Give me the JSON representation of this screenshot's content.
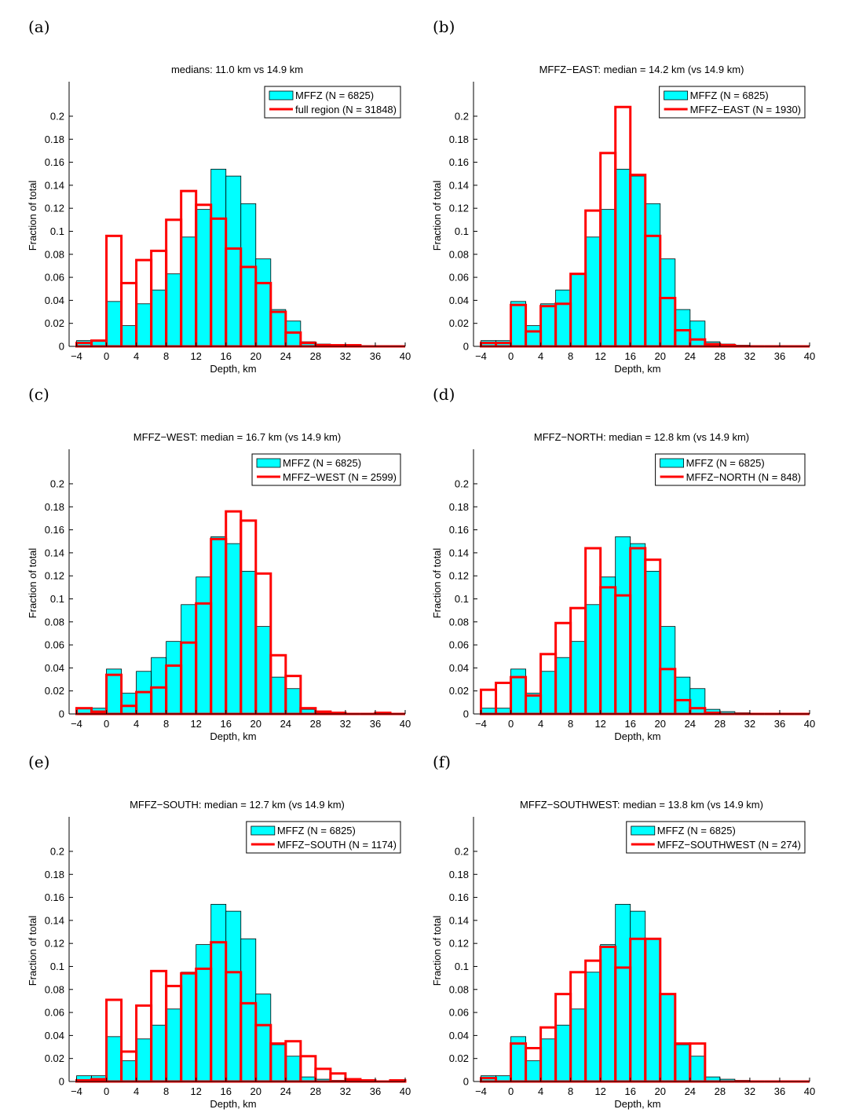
{
  "figure": {
    "colors": {
      "fill": "#00ffff",
      "fill_edge": "#000000",
      "outline": "#ff0000",
      "axis": "#000000"
    }
  },
  "chart_data": [
    {
      "type": "bar",
      "panel_label": "(a)",
      "title": "medians: 11.0 km vs 14.9 km",
      "xlabel": "Depth, km",
      "ylabel": "Fraction of total",
      "xlim": [
        -5,
        40
      ],
      "ylim": [
        0,
        0.23
      ],
      "xticks": [
        -4,
        0,
        4,
        8,
        12,
        16,
        20,
        24,
        28,
        32,
        36,
        40
      ],
      "yticks": [
        0,
        0.02,
        0.04,
        0.06,
        0.08,
        0.1,
        0.12,
        0.14,
        0.16,
        0.18,
        0.2
      ],
      "ytick_labels": [
        "0",
        "0.02",
        "0.04",
        "0.06",
        "0.08",
        "0.1",
        "0.12",
        "0.14",
        "0.16",
        "0.18",
        "0.2"
      ],
      "bin_edges": [
        -4,
        -2,
        0,
        2,
        4,
        6,
        8,
        10,
        12,
        14,
        16,
        18,
        20,
        22,
        24,
        26,
        28,
        30,
        32,
        34,
        36,
        38,
        40
      ],
      "legend_position": "top-right",
      "series": [
        {
          "name": "MFFZ (N = 6825)",
          "style": "filled",
          "values": [
            0.005,
            0.005,
            0.039,
            0.018,
            0.037,
            0.049,
            0.063,
            0.095,
            0.119,
            0.154,
            0.148,
            0.124,
            0.076,
            0.032,
            0.022,
            0.004,
            0.002,
            0.001,
            0,
            0,
            0,
            0
          ]
        },
        {
          "name": "full region (N = 31848)",
          "style": "outline",
          "values": [
            0.003,
            0.005,
            0.096,
            0.055,
            0.075,
            0.083,
            0.11,
            0.135,
            0.123,
            0.111,
            0.085,
            0.069,
            0.055,
            0.03,
            0.012,
            0.003,
            0.001,
            0.001,
            0.001,
            0.0,
            0.0,
            0.0
          ]
        }
      ]
    },
    {
      "type": "bar",
      "panel_label": "(b)",
      "title": "MFFZ−EAST: median = 14.2 km (vs 14.9 km)",
      "xlabel": "Depth, km",
      "ylabel": "Fraction of total",
      "xlim": [
        -5,
        40
      ],
      "ylim": [
        0,
        0.23
      ],
      "xticks": [
        -4,
        0,
        4,
        8,
        12,
        16,
        20,
        24,
        28,
        32,
        36,
        40
      ],
      "yticks": [
        0,
        0.02,
        0.04,
        0.06,
        0.08,
        0.1,
        0.12,
        0.14,
        0.16,
        0.18,
        0.2
      ],
      "ytick_labels": [
        "0",
        "0.02",
        "0.04",
        "0.06",
        "0.08",
        "0.1",
        "0.12",
        "0.14",
        "0.16",
        "0.18",
        "0.2"
      ],
      "bin_edges": [
        -4,
        -2,
        0,
        2,
        4,
        6,
        8,
        10,
        12,
        14,
        16,
        18,
        20,
        22,
        24,
        26,
        28,
        30,
        32,
        34,
        36,
        38,
        40
      ],
      "legend_position": "top-right",
      "series": [
        {
          "name": "MFFZ (N = 6825)",
          "style": "filled",
          "values": [
            0.005,
            0.005,
            0.039,
            0.018,
            0.037,
            0.049,
            0.063,
            0.095,
            0.119,
            0.154,
            0.148,
            0.124,
            0.076,
            0.032,
            0.022,
            0.004,
            0.002,
            0.001,
            0,
            0,
            0,
            0
          ]
        },
        {
          "name": "MFFZ−EAST (N = 1930)",
          "style": "outline",
          "values": [
            0.003,
            0.003,
            0.036,
            0.013,
            0.035,
            0.037,
            0.063,
            0.118,
            0.168,
            0.208,
            0.149,
            0.096,
            0.042,
            0.014,
            0.006,
            0.002,
            0.001,
            0.0,
            0.0,
            0.0,
            0.0,
            0.0
          ]
        }
      ]
    },
    {
      "type": "bar",
      "panel_label": "(c)",
      "title": "MFFZ−WEST: median = 16.7 km (vs 14.9 km)",
      "xlabel": "Depth, km",
      "ylabel": "Fraction of total",
      "xlim": [
        -5,
        40
      ],
      "ylim": [
        0,
        0.23
      ],
      "xticks": [
        -4,
        0,
        4,
        8,
        12,
        16,
        20,
        24,
        28,
        32,
        36,
        40
      ],
      "yticks": [
        0,
        0.02,
        0.04,
        0.06,
        0.08,
        0.1,
        0.12,
        0.14,
        0.16,
        0.18,
        0.2
      ],
      "ytick_labels": [
        "0",
        "0.02",
        "0.04",
        "0.06",
        "0.08",
        "0.1",
        "0.12",
        "0.14",
        "0.16",
        "0.18",
        "0.2"
      ],
      "bin_edges": [
        -4,
        -2,
        0,
        2,
        4,
        6,
        8,
        10,
        12,
        14,
        16,
        18,
        20,
        22,
        24,
        26,
        28,
        30,
        32,
        34,
        36,
        38,
        40
      ],
      "legend_position": "top-right",
      "series": [
        {
          "name": "MFFZ (N = 6825)",
          "style": "filled",
          "values": [
            0.005,
            0.005,
            0.039,
            0.018,
            0.037,
            0.049,
            0.063,
            0.095,
            0.119,
            0.154,
            0.148,
            0.124,
            0.076,
            0.032,
            0.022,
            0.004,
            0.002,
            0.001,
            0,
            0,
            0,
            0
          ]
        },
        {
          "name": "MFFZ−WEST (N = 2599)",
          "style": "outline",
          "values": [
            0.005,
            0.002,
            0.034,
            0.007,
            0.019,
            0.023,
            0.042,
            0.062,
            0.096,
            0.152,
            0.176,
            0.168,
            0.122,
            0.051,
            0.033,
            0.005,
            0.002,
            0.001,
            0.0,
            0.0,
            0.001,
            0.0
          ]
        }
      ]
    },
    {
      "type": "bar",
      "panel_label": "(d)",
      "title": "MFFZ−NORTH: median = 12.8 km (vs 14.9 km)",
      "xlabel": "Depth, km",
      "ylabel": "Fraction of total",
      "xlim": [
        -5,
        40
      ],
      "ylim": [
        0,
        0.23
      ],
      "xticks": [
        -4,
        0,
        4,
        8,
        12,
        16,
        20,
        24,
        28,
        32,
        36,
        40
      ],
      "yticks": [
        0,
        0.02,
        0.04,
        0.06,
        0.08,
        0.1,
        0.12,
        0.14,
        0.16,
        0.18,
        0.2
      ],
      "ytick_labels": [
        "0",
        "0.02",
        "0.04",
        "0.06",
        "0.08",
        "0.1",
        "0.12",
        "0.14",
        "0.16",
        "0.18",
        "0.2"
      ],
      "bin_edges": [
        -4,
        -2,
        0,
        2,
        4,
        6,
        8,
        10,
        12,
        14,
        16,
        18,
        20,
        22,
        24,
        26,
        28,
        30,
        32,
        34,
        36,
        38,
        40
      ],
      "legend_position": "top-right",
      "series": [
        {
          "name": "MFFZ (N = 6825)",
          "style": "filled",
          "values": [
            0.005,
            0.005,
            0.039,
            0.018,
            0.037,
            0.049,
            0.063,
            0.095,
            0.119,
            0.154,
            0.148,
            0.124,
            0.076,
            0.032,
            0.022,
            0.004,
            0.002,
            0.001,
            0,
            0,
            0,
            0
          ]
        },
        {
          "name": "MFFZ−NORTH (N = 848)",
          "style": "outline",
          "values": [
            0.021,
            0.027,
            0.032,
            0.016,
            0.052,
            0.079,
            0.092,
            0.144,
            0.11,
            0.103,
            0.144,
            0.134,
            0.039,
            0.012,
            0.005,
            0.001,
            0.0,
            0.0,
            0.0,
            0.0,
            0.0,
            0.0
          ]
        }
      ]
    },
    {
      "type": "bar",
      "panel_label": "(e)",
      "title": "MFFZ−SOUTH: median = 12.7 km (vs 14.9 km)",
      "xlabel": "Depth, km",
      "ylabel": "Fraction of total",
      "xlim": [
        -5,
        40
      ],
      "ylim": [
        0,
        0.23
      ],
      "xticks": [
        -4,
        0,
        4,
        8,
        12,
        16,
        20,
        24,
        28,
        32,
        36,
        40
      ],
      "yticks": [
        0,
        0.02,
        0.04,
        0.06,
        0.08,
        0.1,
        0.12,
        0.14,
        0.16,
        0.18,
        0.2
      ],
      "ytick_labels": [
        "0",
        "0.02",
        "0.04",
        "0.06",
        "0.08",
        "0.1",
        "0.12",
        "0.14",
        "0.16",
        "0.18",
        "0.2"
      ],
      "bin_edges": [
        -4,
        -2,
        0,
        2,
        4,
        6,
        8,
        10,
        12,
        14,
        16,
        18,
        20,
        22,
        24,
        26,
        28,
        30,
        32,
        34,
        36,
        38,
        40
      ],
      "legend_position": "top-right",
      "series": [
        {
          "name": "MFFZ (N = 6825)",
          "style": "filled",
          "values": [
            0.005,
            0.005,
            0.039,
            0.018,
            0.037,
            0.049,
            0.063,
            0.095,
            0.119,
            0.154,
            0.148,
            0.124,
            0.076,
            0.032,
            0.022,
            0.004,
            0.002,
            0.001,
            0,
            0,
            0,
            0
          ]
        },
        {
          "name": "MFFZ−SOUTH (N = 1174)",
          "style": "outline",
          "values": [
            0.001,
            0.002,
            0.071,
            0.026,
            0.066,
            0.096,
            0.083,
            0.094,
            0.098,
            0.121,
            0.095,
            0.068,
            0.049,
            0.033,
            0.035,
            0.022,
            0.011,
            0.007,
            0.002,
            0.001,
            0.0,
            0.001
          ]
        }
      ]
    },
    {
      "type": "bar",
      "panel_label": "(f)",
      "title": "MFFZ−SOUTHWEST: median = 13.8 km (vs 14.9 km)",
      "xlabel": "Depth, km",
      "ylabel": "Fraction of total",
      "xlim": [
        -5,
        40
      ],
      "ylim": [
        0,
        0.23
      ],
      "xticks": [
        -4,
        0,
        4,
        8,
        12,
        16,
        20,
        24,
        28,
        32,
        36,
        40
      ],
      "yticks": [
        0,
        0.02,
        0.04,
        0.06,
        0.08,
        0.1,
        0.12,
        0.14,
        0.16,
        0.18,
        0.2
      ],
      "ytick_labels": [
        "0",
        "0.02",
        "0.04",
        "0.06",
        "0.08",
        "0.1",
        "0.12",
        "0.14",
        "0.16",
        "0.18",
        "0.2"
      ],
      "bin_edges": [
        -4,
        -2,
        0,
        2,
        4,
        6,
        8,
        10,
        12,
        14,
        16,
        18,
        20,
        22,
        24,
        26,
        28,
        30,
        32,
        34,
        36,
        38,
        40
      ],
      "legend_position": "top-right",
      "series": [
        {
          "name": "MFFZ (N = 6825)",
          "style": "filled",
          "values": [
            0.005,
            0.005,
            0.039,
            0.018,
            0.037,
            0.049,
            0.063,
            0.095,
            0.119,
            0.154,
            0.148,
            0.124,
            0.076,
            0.032,
            0.022,
            0.004,
            0.002,
            0.001,
            0,
            0,
            0,
            0
          ]
        },
        {
          "name": "MFFZ−SOUTHWEST (N = 274)",
          "style": "outline",
          "values": [
            0.003,
            0.0,
            0.033,
            0.029,
            0.047,
            0.076,
            0.095,
            0.105,
            0.117,
            0.099,
            0.124,
            0.124,
            0.076,
            0.033,
            0.033,
            0.0,
            0.0,
            0.0,
            0.0,
            0.0,
            0.0,
            0.0
          ]
        }
      ]
    }
  ]
}
